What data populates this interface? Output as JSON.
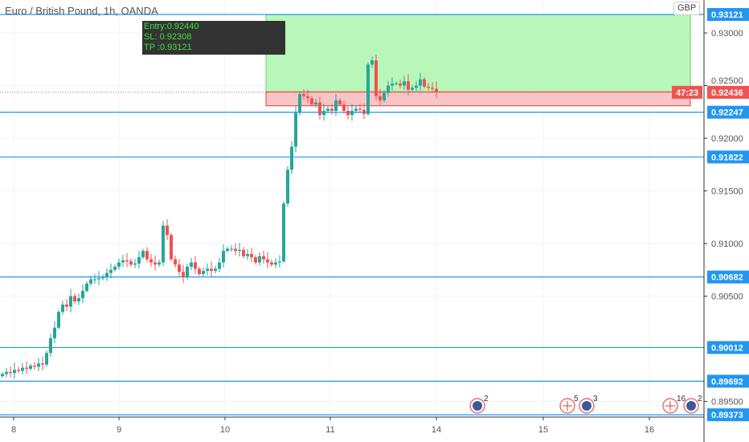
{
  "header": {
    "title": "Euro / British Pound, 1h, OANDA",
    "currency": "GBP"
  },
  "order_box": {
    "entry_label": "Entry:0.92440",
    "sl_label": "SL: 0.92308",
    "tp_label": "TP :0.93121",
    "entry": 0.9244,
    "sl": 0.92308,
    "tp": 0.93121
  },
  "colors": {
    "up": "#26a69a",
    "down": "#ef5350",
    "level": "#2196f3",
    "profit": "#b9f6b9",
    "loss": "#f7c5c5"
  },
  "chart_data": {
    "type": "candlestick",
    "title": "Euro / British Pound, 1h, OANDA",
    "x_ticks": [
      "8",
      "9",
      "10",
      "11",
      "14",
      "15",
      "16"
    ],
    "y_ticks": [
      "0.93000",
      "0.92500",
      "0.92000",
      "0.91500",
      "0.91000",
      "0.90500",
      "0.89500"
    ],
    "y_tick_values": [
      0.93,
      0.925,
      0.92,
      0.915,
      0.91,
      0.905,
      0.895
    ],
    "ylim": [
      0.8925,
      0.9331
    ],
    "levels": [
      {
        "value": 0.93121,
        "label": "0.93121"
      },
      {
        "value": 0.92247,
        "label": "0.92247"
      },
      {
        "value": 0.91822,
        "label": "0.91822"
      },
      {
        "value": 0.90682,
        "label": "0.90682"
      },
      {
        "value": 0.90012,
        "label": "0.90012"
      },
      {
        "value": 0.89692,
        "label": "0.89692"
      },
      {
        "value": 0.89373,
        "label": "0.89373"
      }
    ],
    "current_price": {
      "value": 0.92436,
      "label": "0.92436",
      "countdown": "47:23"
    },
    "closes": [
      0.8976,
      0.8978,
      0.8977,
      0.898,
      0.8979,
      0.8982,
      0.8981,
      0.8984,
      0.8983,
      0.8986,
      0.8985,
      0.8996,
      0.901,
      0.902,
      0.9035,
      0.9042,
      0.904,
      0.905,
      0.9045,
      0.9048,
      0.9055,
      0.9062,
      0.9066,
      0.9066,
      0.9067,
      0.9068,
      0.9072,
      0.9075,
      0.9078,
      0.9082,
      0.9084,
      0.9083,
      0.908,
      0.9081,
      0.9087,
      0.9093,
      0.9085,
      0.9082,
      0.908,
      0.9082,
      0.9117,
      0.9108,
      0.9085,
      0.908,
      0.9073,
      0.9068,
      0.9078,
      0.9082,
      0.9076,
      0.9071,
      0.9074,
      0.9076,
      0.9074,
      0.9076,
      0.9082,
      0.9093,
      0.9095,
      0.9095,
      0.9093,
      0.9094,
      0.9088,
      0.909,
      0.9087,
      0.9082,
      0.9088,
      0.9085,
      0.9082,
      0.908,
      0.9082,
      0.9083,
      0.9138,
      0.917,
      0.9192,
      0.9224,
      0.9242,
      0.924,
      0.9238,
      0.9232,
      0.9234,
      0.9222,
      0.9226,
      0.9228,
      0.9226,
      0.9236,
      0.9232,
      0.9226,
      0.9222,
      0.9226,
      0.9228,
      0.9227,
      0.9223,
      0.927,
      0.9274,
      0.924,
      0.9236,
      0.9243,
      0.925,
      0.9252,
      0.9252,
      0.925,
      0.9254,
      0.9246,
      0.9248,
      0.925,
      0.9256,
      0.9249,
      0.9248,
      0.9247,
      0.92436
    ],
    "events": [
      {
        "type": "calendar",
        "count": "2"
      },
      {
        "type": "flag",
        "count": "5"
      },
      {
        "type": "calendar",
        "count": "3"
      },
      {
        "type": "flag",
        "count": "16"
      },
      {
        "type": "calendar",
        "count": "2"
      }
    ]
  }
}
